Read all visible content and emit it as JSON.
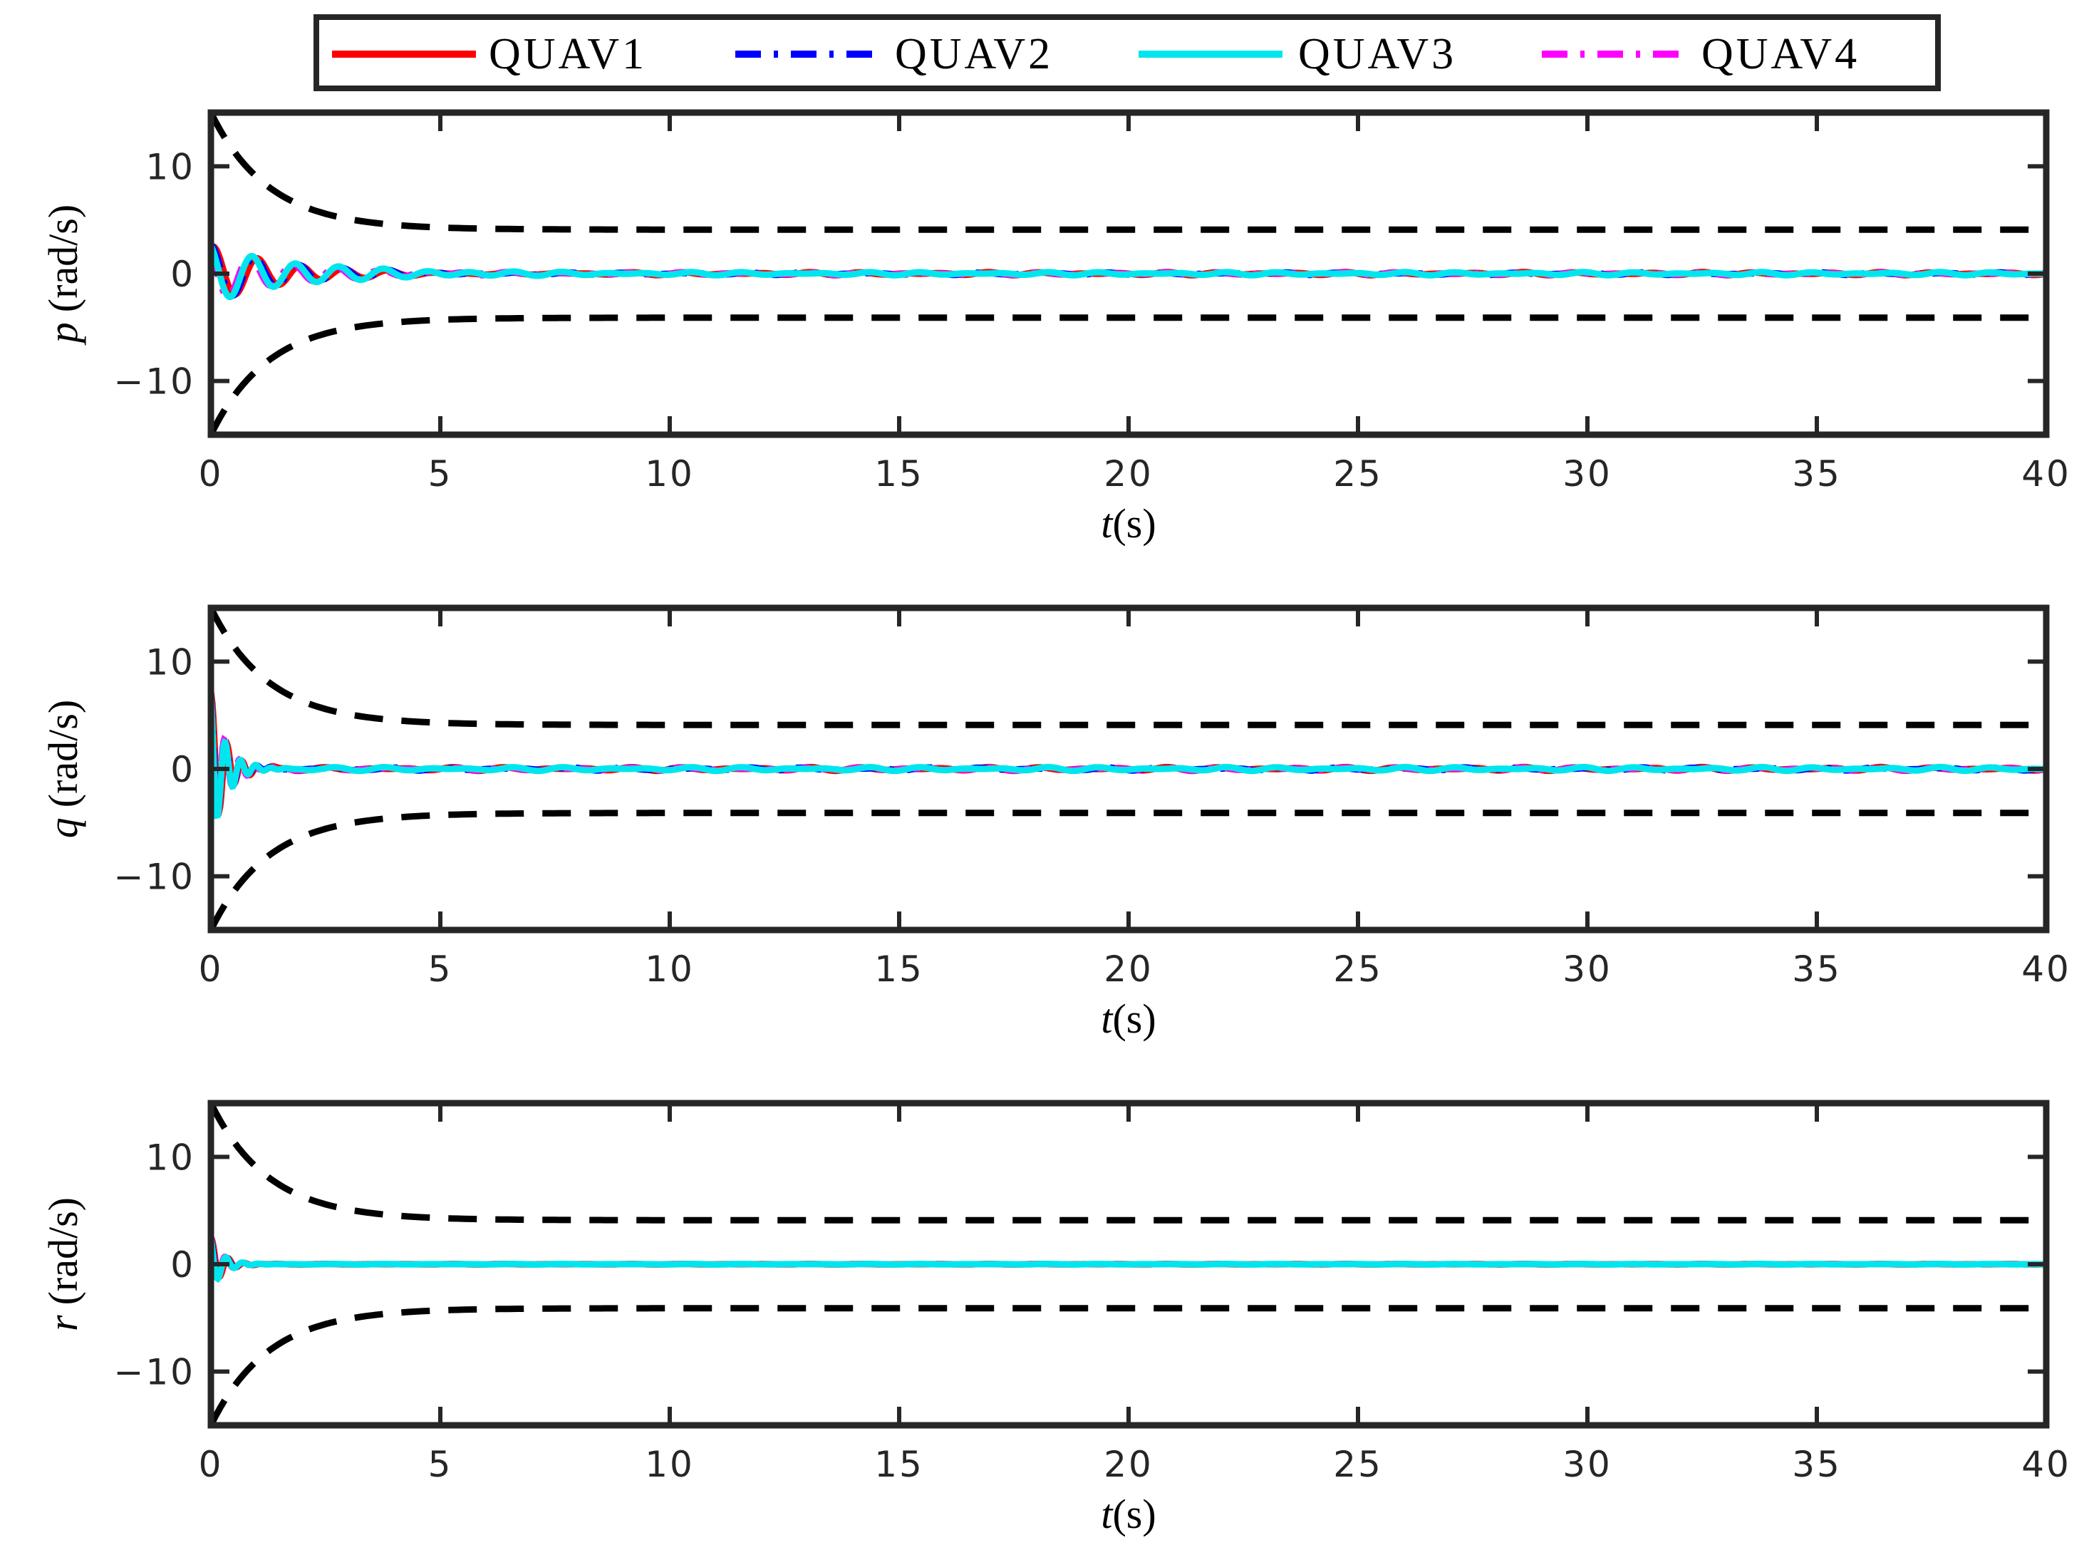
{
  "legend": {
    "entries": [
      {
        "label": "QUAV1",
        "color": "#ff0000",
        "style": "solid"
      },
      {
        "label": "QUAV2",
        "color": "#0000ff",
        "style": "dash-dot"
      },
      {
        "label": "QUAV3",
        "color": "#00e5ee",
        "style": "solid"
      },
      {
        "label": "QUAV4",
        "color": "#ff00ff",
        "style": "dash-dot"
      }
    ],
    "placement": "top-center, outside the plots"
  },
  "chart_data": [
    {
      "type": "line",
      "ylabel": {
        "symbol": "p",
        "unit": "(rad/s)"
      },
      "xlabel": {
        "symbol": "t",
        "unit": "(s)"
      },
      "xlim": [
        0,
        40
      ],
      "ylim": [
        -15,
        15
      ],
      "x_ticks": [
        "0",
        "5",
        "10",
        "15",
        "20",
        "25",
        "30",
        "35",
        "40"
      ],
      "y_ticks": [
        "10",
        "0",
        "−10"
      ],
      "bounds": {
        "description": "prescribed performance bounds ±b(t)",
        "start": 15,
        "end": 4.1,
        "decay": 0.8,
        "color": "#000000",
        "style": "dashed"
      },
      "response": {
        "amp": 2.6,
        "decay": 0.55,
        "freq": 1.05,
        "ripple": 0.15
      },
      "grid": false
    },
    {
      "type": "line",
      "ylabel": {
        "symbol": "q",
        "unit": "(rad/s)"
      },
      "xlabel": {
        "symbol": "t",
        "unit": "(s)"
      },
      "xlim": [
        0,
        40
      ],
      "ylim": [
        -15,
        15
      ],
      "x_ticks": [
        "0",
        "5",
        "10",
        "15",
        "20",
        "25",
        "30",
        "35",
        "40"
      ],
      "y_ticks": [
        "10",
        "0",
        "−10"
      ],
      "bounds": {
        "description": "prescribed performance bounds ±b(t)",
        "start": 15,
        "end": 4.1,
        "decay": 0.8,
        "color": "#000000",
        "style": "dashed"
      },
      "response": {
        "amp": 7.0,
        "decay": 3.2,
        "freq": 3.0,
        "ripple": 0.18
      },
      "grid": false
    },
    {
      "type": "line",
      "ylabel": {
        "symbol": "r",
        "unit": "(rad/s)"
      },
      "xlabel": {
        "symbol": "t",
        "unit": "(s)"
      },
      "xlim": [
        0,
        40
      ],
      "ylim": [
        -15,
        15
      ],
      "x_ticks": [
        "0",
        "5",
        "10",
        "15",
        "20",
        "25",
        "30",
        "35",
        "40"
      ],
      "y_ticks": [
        "10",
        "0",
        "−10"
      ],
      "bounds": {
        "description": "prescribed performance bounds ±b(t)",
        "start": 15,
        "end": 4.1,
        "decay": 0.8,
        "color": "#000000",
        "style": "dashed"
      },
      "response": {
        "amp": 2.5,
        "decay": 4.0,
        "freq": 2.8,
        "ripple": 0.03
      },
      "grid": false
    }
  ]
}
